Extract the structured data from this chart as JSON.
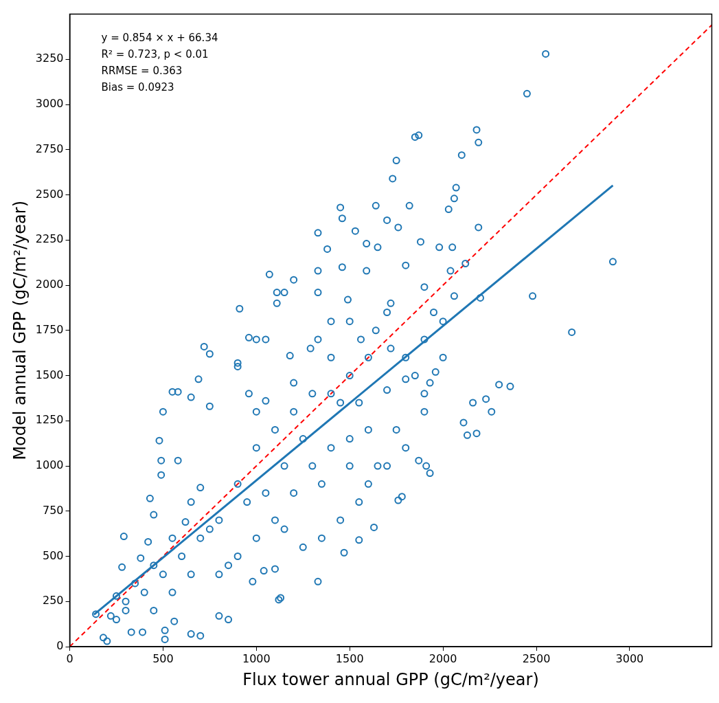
{
  "chart_data": {
    "type": "scatter",
    "xlabel": "Flux tower annual GPP (gC/m²/year)",
    "ylabel": "Model annual GPP (gC/m²/year)",
    "annotations": [
      "y = 0.854 × x + 66.34",
      "R² = 0.723, p < 0.01",
      "RRMSE = 0.363",
      "Bias = 0.0923"
    ],
    "xlim": [
      0,
      3440
    ],
    "ylim": [
      0,
      3500
    ],
    "xticks": [
      0,
      500,
      1000,
      1500,
      2000,
      2500,
      3000
    ],
    "yticks": [
      0,
      250,
      500,
      750,
      1000,
      1250,
      1500,
      1750,
      2000,
      2250,
      2500,
      2750,
      3000,
      3250
    ],
    "grid": false,
    "legend": false,
    "series": [
      {
        "marker": "circle",
        "color": "#1f77b4",
        "x": [
          2550,
          2450,
          1870,
          1850,
          2180,
          2190,
          2100,
          1750,
          1730,
          2070,
          2060,
          1450,
          1640,
          1820,
          2030,
          1460,
          1330,
          1530,
          1590,
          1650,
          2190,
          1880,
          1980,
          2050,
          1700,
          1760,
          1380,
          1070,
          1200,
          1330,
          1460,
          1590,
          1800,
          2040,
          2120,
          2200,
          910,
          1110,
          1150,
          1330,
          1490,
          1720,
          1900,
          2060,
          2480,
          2690,
          2910,
          2300,
          2360,
          2260,
          2230,
          2160,
          2130,
          2180,
          2110,
          1960,
          1930,
          1900,
          1910,
          1930,
          1870,
          1780,
          1760,
          1630,
          1550,
          1470,
          1330,
          1130,
          1120,
          1100,
          1040,
          980,
          850,
          800,
          700,
          650,
          560,
          510,
          510,
          390,
          330,
          200,
          180,
          140,
          220,
          250,
          300,
          290,
          280,
          380,
          420,
          430,
          450,
          480,
          490,
          490,
          500,
          550,
          580,
          580,
          620,
          650,
          690,
          720,
          750,
          750,
          900,
          900,
          960,
          1000,
          960,
          1000,
          1050,
          1050,
          1110,
          1180,
          1200,
          1290,
          1330,
          1400,
          1400,
          1500,
          1560,
          1640,
          1720,
          1800,
          1850,
          1700,
          1600,
          1500,
          1400,
          1300,
          1200,
          1100,
          1000,
          900,
          800,
          700,
          600,
          500,
          400,
          300,
          250,
          350,
          450,
          550,
          650,
          700,
          800,
          900,
          1000,
          1100,
          1200,
          1300,
          1400,
          1500,
          1600,
          1700,
          1800,
          1900,
          2000,
          2000,
          1750,
          1650,
          1550,
          1450,
          1350,
          1250,
          1150,
          1050,
          950,
          850,
          750,
          650,
          550,
          450,
          1600,
          1700,
          1800,
          1900,
          1450,
          1350,
          1250,
          1150,
          1500,
          1550,
          1950
        ],
        "values": [
          3280,
          3060,
          2830,
          2820,
          2860,
          2790,
          2720,
          2690,
          2590,
          2540,
          2480,
          2430,
          2440,
          2440,
          2420,
          2370,
          2290,
          2300,
          2230,
          2210,
          2320,
          2240,
          2210,
          2210,
          2360,
          2320,
          2200,
          2060,
          2030,
          2080,
          2100,
          2080,
          2110,
          2080,
          2120,
          1930,
          1870,
          1960,
          1960,
          1960,
          1920,
          1900,
          1990,
          1940,
          1940,
          1740,
          2130,
          1450,
          1440,
          1300,
          1370,
          1350,
          1170,
          1180,
          1240,
          1520,
          1460,
          1400,
          1000,
          960,
          1030,
          830,
          810,
          660,
          590,
          520,
          360,
          270,
          260,
          430,
          420,
          360,
          150,
          170,
          60,
          70,
          140,
          90,
          40,
          80,
          80,
          30,
          50,
          180,
          170,
          280,
          250,
          610,
          440,
          490,
          580,
          820,
          730,
          1140,
          1030,
          950,
          1300,
          1410,
          1410,
          1030,
          690,
          1380,
          1480,
          1660,
          1620,
          1330,
          1570,
          1550,
          1710,
          1700,
          1400,
          1300,
          1360,
          1700,
          1900,
          1610,
          1460,
          1650,
          1700,
          1800,
          1400,
          1500,
          1700,
          1750,
          1650,
          1480,
          1500,
          1420,
          1200,
          1150,
          1100,
          1000,
          850,
          700,
          600,
          500,
          400,
          600,
          500,
          400,
          300,
          200,
          150,
          350,
          450,
          600,
          800,
          880,
          700,
          900,
          1100,
          1200,
          1300,
          1400,
          1600,
          1800,
          1600,
          1850,
          1600,
          1700,
          1800,
          1600,
          1200,
          1000,
          800,
          700,
          600,
          550,
          650,
          850,
          800,
          450,
          650,
          400,
          300,
          200,
          900,
          1000,
          1100,
          1300,
          1350,
          900,
          1150,
          1000,
          1000,
          1350,
          1850
        ]
      },
      {
        "type": "line",
        "color": "#1f77b4",
        "line_style": "solid",
        "x": [
          130,
          2910
        ],
        "values": [
          177,
          2552
        ]
      },
      {
        "type": "line",
        "color": "#ff0000",
        "line_style": "dashed",
        "x": [
          0,
          3440
        ],
        "values": [
          0,
          3440
        ]
      }
    ]
  }
}
